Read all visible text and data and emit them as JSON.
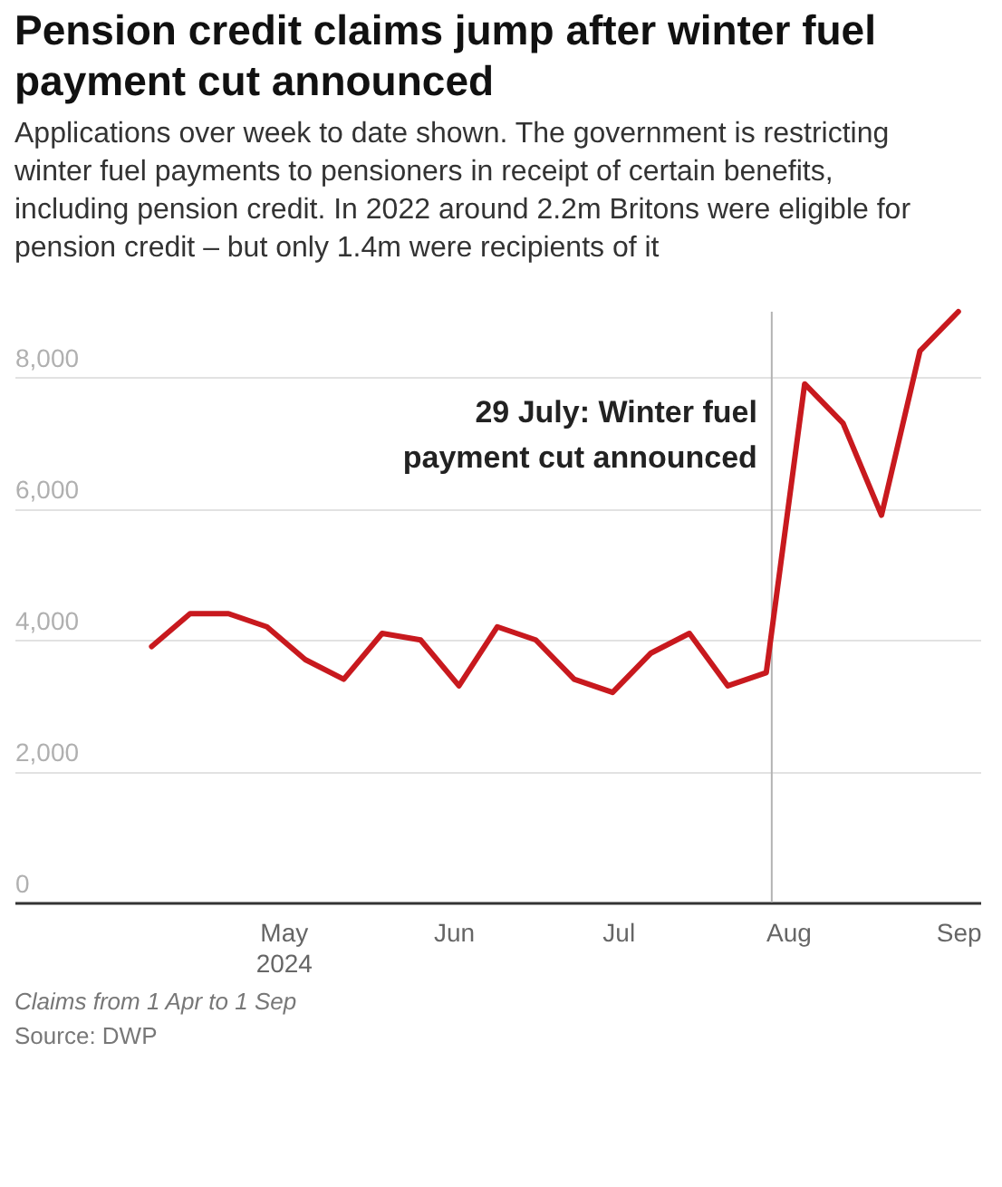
{
  "chart_data": {
    "type": "line",
    "title": "Pension credit claims jump after winter fuel payment cut announced",
    "subtitle": "Applications over week to date shown. The government is restricting winter fuel payments to pensioners in receipt of certain benefits, including pension credit. In 2022 around 2.2m Britons were eligible for pension credit – but only 1.4m were recipients of it",
    "x": [
      "2024-04-07",
      "2024-04-14",
      "2024-04-21",
      "2024-04-28",
      "2024-05-05",
      "2024-05-12",
      "2024-05-19",
      "2024-05-26",
      "2024-06-02",
      "2024-06-09",
      "2024-06-16",
      "2024-06-23",
      "2024-06-30",
      "2024-07-07",
      "2024-07-14",
      "2024-07-21",
      "2024-07-28",
      "2024-08-04",
      "2024-08-11",
      "2024-08-18",
      "2024-08-25",
      "2024-09-01"
    ],
    "series": [
      {
        "color": "#c8191e",
        "values": [
          3900,
          4400,
          4400,
          4200,
          3700,
          3400,
          4100,
          4000,
          3300,
          4200,
          4000,
          3400,
          3200,
          3800,
          4100,
          3300,
          3500,
          7900,
          7300,
          5900,
          8400,
          9000
        ]
      }
    ],
    "xlim": [
      "2024-03-13",
      "2024-09-05"
    ],
    "xticks": [
      {
        "value": "2024-05-01",
        "label": "May\n2024"
      },
      {
        "value": "2024-06-01",
        "label": "Jun"
      },
      {
        "value": "2024-07-01",
        "label": "Jul"
      },
      {
        "value": "2024-08-01",
        "label": "Aug"
      },
      {
        "value": "2024-09-01",
        "label": "Sep"
      }
    ],
    "ylim": [
      0,
      9000
    ],
    "yticks": [
      0,
      {
        "value": 2000,
        "label": "2,000"
      },
      {
        "value": 4000,
        "label": "4,000"
      },
      {
        "value": 6000,
        "label": "6,000"
      },
      {
        "value": 8000,
        "label": "8,000"
      }
    ],
    "grid": "y",
    "marker": "none",
    "line_style": "solid",
    "ref_lines": [
      {
        "axis": "x",
        "value": "2024-07-29",
        "label": "29 July: Winter fuel payment cut announced",
        "color": "#b3b3b3"
      }
    ],
    "annotations": [
      "Claims from 1 Apr to 1 Sep",
      "Source: DWP"
    ]
  }
}
